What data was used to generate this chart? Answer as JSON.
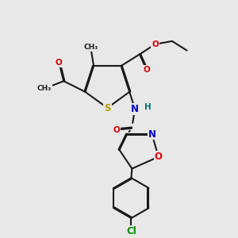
{
  "bg_color": "#e8e8e8",
  "bond_color": "#1a1a1a",
  "bond_width": 1.5,
  "dbo": 0.012,
  "atom_colors": {
    "S": "#b8a000",
    "O": "#dd0000",
    "N": "#0000cc",
    "Cl": "#008800",
    "H": "#007070",
    "C": "#1a1a1a"
  },
  "fs": 7.5
}
